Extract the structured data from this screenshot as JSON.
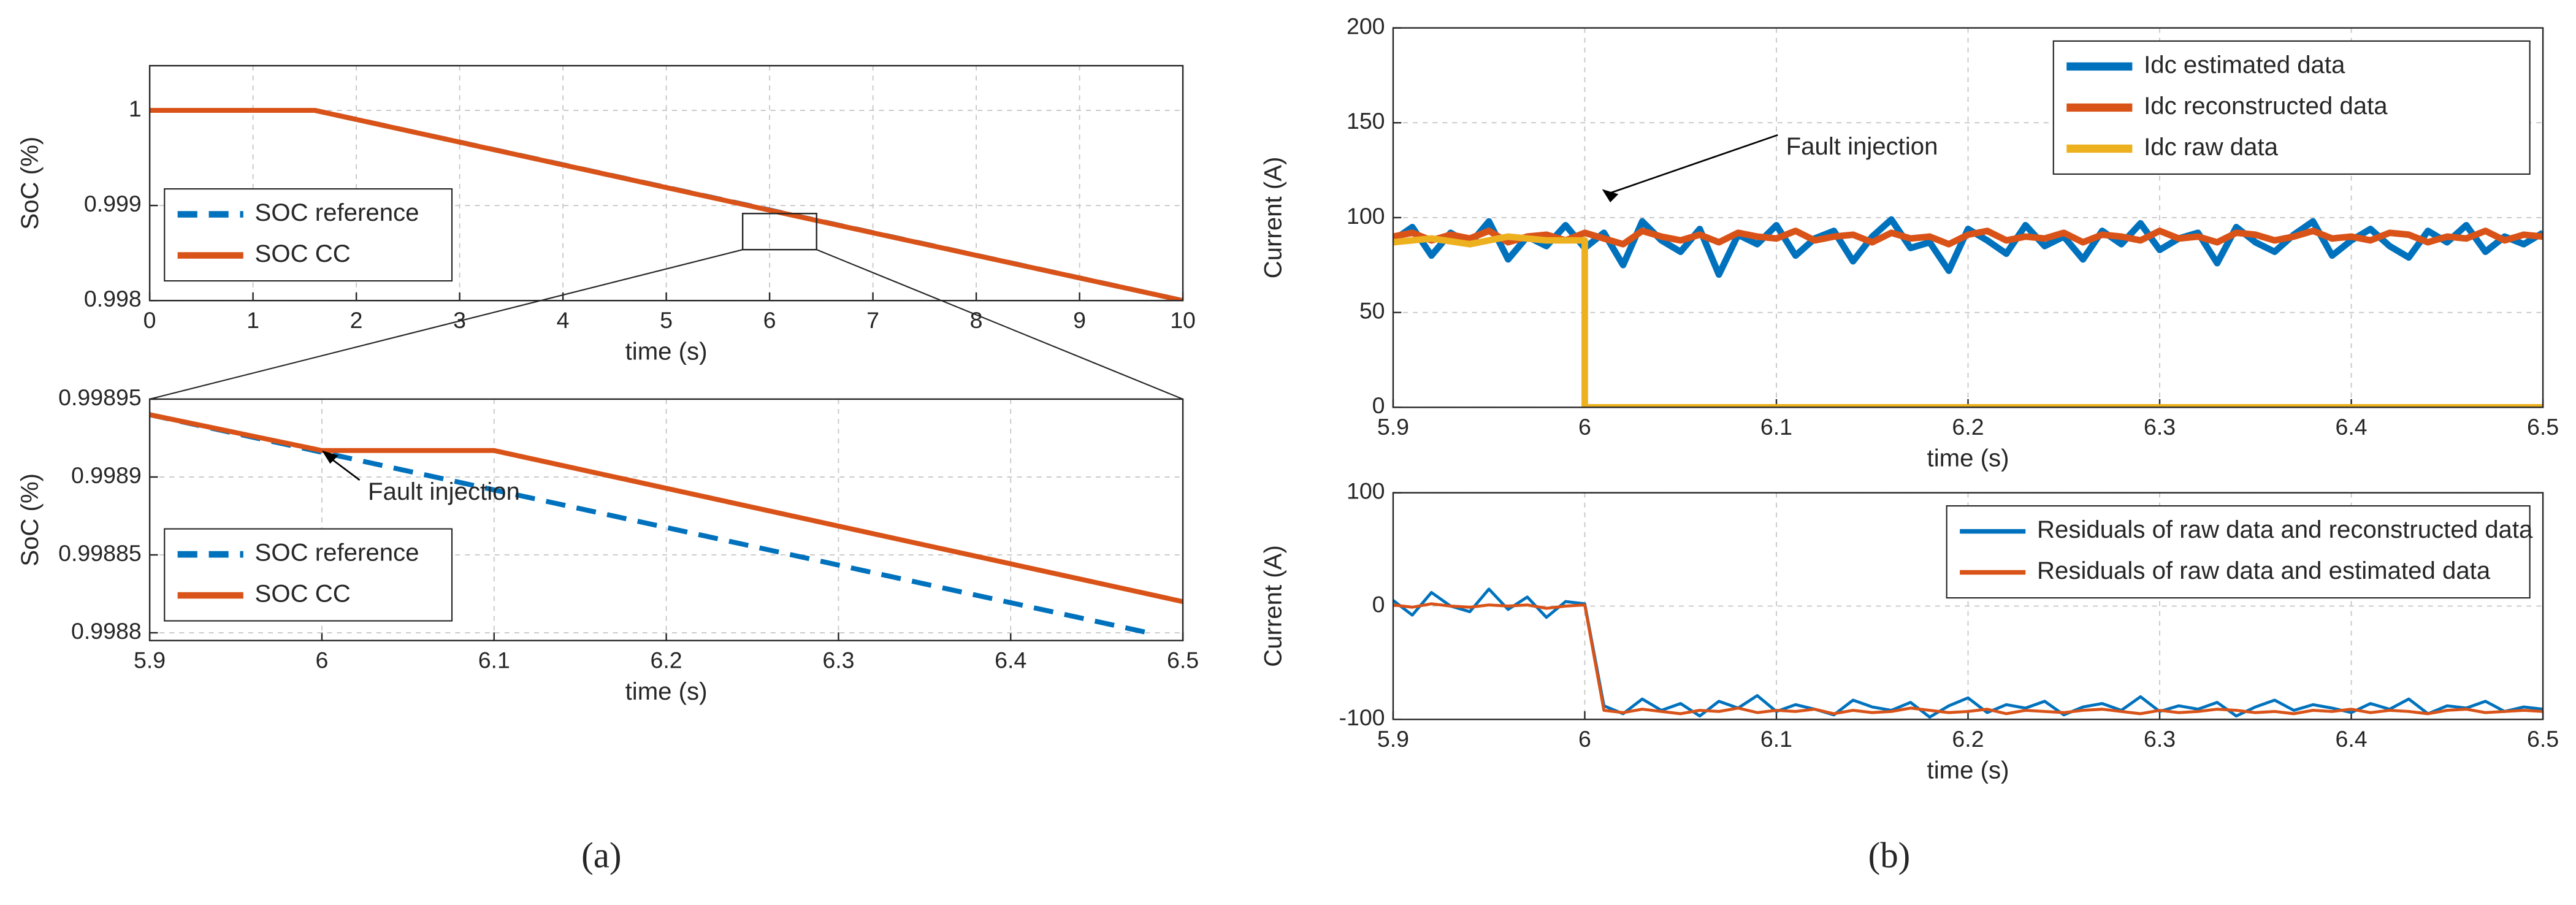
{
  "chart_data": [
    {
      "type": "line",
      "ylabel": "SoC (%)",
      "xlabel": "time (s)",
      "xlim": [
        0,
        10
      ],
      "xticks": [
        0,
        1,
        2,
        3,
        4,
        5,
        6,
        7,
        8,
        9,
        10
      ],
      "ylim": [
        0.998,
        1.00047
      ],
      "yticks": [
        0.998,
        0.999,
        1
      ],
      "grid": true,
      "legend": "lower left",
      "series": [
        {
          "name": "SOC reference",
          "color": "#0072bd",
          "style": "dashed",
          "x": [
            0,
            1.6,
            10
          ],
          "values": [
            1,
            1,
            0.998
          ]
        },
        {
          "name": "SOC CC",
          "color": "#d95319",
          "style": "solid",
          "x": [
            0,
            1.6,
            6,
            10
          ],
          "values": [
            1,
            1,
            0.99895,
            0.998
          ]
        }
      ]
    },
    {
      "type": "line",
      "ylabel": "SoC (%)",
      "xlabel": "time (s)",
      "xlim": [
        5.9,
        6.5
      ],
      "xticks": [
        5.9,
        6,
        6.1,
        6.2,
        6.3,
        6.4,
        6.5
      ],
      "ylim": [
        0.998795,
        0.99895
      ],
      "yticks": [
        0.9988,
        0.99885,
        0.9989,
        0.99895
      ],
      "grid": true,
      "legend": "lower left",
      "annotations": [
        {
          "text": "Fault injection",
          "x": 6.0,
          "y": 0.998917
        }
      ],
      "series": [
        {
          "name": "SOC reference",
          "color": "#0072bd",
          "style": "dashed",
          "x": [
            5.9,
            6.48
          ],
          "values": [
            0.99894,
            0.9988
          ]
        },
        {
          "name": "SOC CC",
          "color": "#d95319",
          "style": "solid",
          "x": [
            5.9,
            6.0,
            6.1,
            6.5
          ],
          "values": [
            0.99894,
            0.998917,
            0.998917,
            0.99882
          ]
        }
      ]
    },
    {
      "type": "line",
      "ylabel": "Current (A)",
      "xlabel": "time (s)",
      "xlim": [
        5.9,
        6.5
      ],
      "xticks": [
        5.9,
        6,
        6.1,
        6.2,
        6.3,
        6.4,
        6.5
      ],
      "ylim": [
        0,
        200
      ],
      "yticks": [
        0,
        50,
        100,
        150,
        200
      ],
      "grid": true,
      "legend": "upper right",
      "annotations": [
        {
          "text": "Fault injection",
          "x": 6.009,
          "y": 115
        }
      ],
      "series": [
        {
          "name": "Idc estimated data",
          "color": "#0072bd",
          "style": "solid",
          "x": [
            5.9,
            5.91,
            5.92,
            5.93,
            5.94,
            5.95,
            5.96,
            5.97,
            5.98,
            5.99,
            6.0,
            6.01,
            6.02,
            6.03,
            6.04,
            6.05,
            6.06,
            6.07,
            6.08,
            6.09,
            6.1,
            6.11,
            6.12,
            6.13,
            6.14,
            6.15,
            6.16,
            6.17,
            6.18,
            6.19,
            6.2,
            6.21,
            6.22,
            6.23,
            6.24,
            6.25,
            6.26,
            6.27,
            6.28,
            6.29,
            6.3,
            6.31,
            6.32,
            6.33,
            6.34,
            6.35,
            6.36,
            6.37,
            6.38,
            6.39,
            6.4,
            6.41,
            6.42,
            6.43,
            6.44,
            6.45,
            6.46,
            6.47,
            6.48,
            6.49,
            6.5
          ],
          "values": [
            88,
            95,
            80,
            92,
            86,
            98,
            78,
            90,
            85,
            96,
            84,
            92,
            75,
            98,
            88,
            82,
            94,
            70,
            91,
            86,
            96,
            80,
            89,
            93,
            77,
            90,
            99,
            84,
            87,
            72,
            94,
            88,
            81,
            96,
            85,
            90,
            78,
            93,
            86,
            97,
            83,
            89,
            92,
            76,
            95,
            87,
            82,
            91,
            98,
            80,
            88,
            94,
            85,
            79,
            93,
            87,
            96,
            82,
            90,
            86,
            92
          ]
        },
        {
          "name": "Idc reconstructed data",
          "color": "#d95319",
          "style": "solid",
          "x": [
            5.9,
            5.91,
            5.92,
            5.93,
            5.94,
            5.95,
            5.96,
            5.97,
            5.98,
            5.99,
            6.0,
            6.01,
            6.02,
            6.03,
            6.04,
            6.05,
            6.06,
            6.07,
            6.08,
            6.09,
            6.1,
            6.11,
            6.12,
            6.13,
            6.14,
            6.15,
            6.16,
            6.17,
            6.18,
            6.19,
            6.2,
            6.21,
            6.22,
            6.23,
            6.24,
            6.25,
            6.26,
            6.27,
            6.28,
            6.29,
            6.3,
            6.31,
            6.32,
            6.33,
            6.34,
            6.35,
            6.36,
            6.37,
            6.38,
            6.39,
            6.4,
            6.41,
            6.42,
            6.43,
            6.44,
            6.45,
            6.46,
            6.47,
            6.48,
            6.49,
            6.5
          ],
          "values": [
            90,
            92,
            88,
            91,
            89,
            93,
            87,
            90,
            91,
            88,
            92,
            89,
            86,
            93,
            90,
            88,
            91,
            87,
            92,
            90,
            89,
            93,
            88,
            90,
            91,
            87,
            92,
            89,
            90,
            86,
            91,
            93,
            88,
            90,
            89,
            92,
            87,
            91,
            90,
            88,
            93,
            89,
            90,
            87,
            92,
            91,
            88,
            90,
            93,
            89,
            90,
            88,
            92,
            91,
            87,
            90,
            89,
            93,
            88,
            91,
            90
          ]
        },
        {
          "name": "Idc raw data",
          "color": "#edb120",
          "style": "solid",
          "x": [
            5.9,
            5.92,
            5.94,
            5.96,
            5.98,
            6.0,
            6.0,
            6.5
          ],
          "values": [
            87,
            89,
            86,
            90,
            88,
            88,
            0,
            0
          ]
        }
      ]
    },
    {
      "type": "line",
      "ylabel": "Current (A)",
      "xlabel": "time (s)",
      "xlim": [
        5.9,
        6.5
      ],
      "xticks": [
        5.9,
        6,
        6.1,
        6.2,
        6.3,
        6.4,
        6.5
      ],
      "ylim": [
        -100,
        100
      ],
      "yticks": [
        -100,
        0,
        100
      ],
      "grid": true,
      "legend": "upper right",
      "series": [
        {
          "name": "Residuals of raw data and reconstructed data",
          "color": "#0072bd",
          "style": "solid",
          "x": [
            5.9,
            5.91,
            5.92,
            5.93,
            5.94,
            5.95,
            5.96,
            5.97,
            5.98,
            5.99,
            6.0,
            6.01,
            6.02,
            6.03,
            6.04,
            6.05,
            6.06,
            6.07,
            6.08,
            6.09,
            6.1,
            6.11,
            6.12,
            6.13,
            6.14,
            6.15,
            6.16,
            6.17,
            6.18,
            6.19,
            6.2,
            6.21,
            6.22,
            6.23,
            6.24,
            6.25,
            6.26,
            6.27,
            6.28,
            6.29,
            6.3,
            6.31,
            6.32,
            6.33,
            6.34,
            6.35,
            6.36,
            6.37,
            6.38,
            6.39,
            6.4,
            6.41,
            6.42,
            6.43,
            6.44,
            6.45,
            6.46,
            6.47,
            6.48,
            6.49,
            6.5
          ],
          "values": [
            5,
            -8,
            12,
            0,
            -5,
            15,
            -3,
            8,
            -10,
            4,
            2,
            -88,
            -95,
            -82,
            -92,
            -86,
            -97,
            -84,
            -90,
            -79,
            -93,
            -87,
            -91,
            -96,
            -83,
            -89,
            -92,
            -85,
            -98,
            -88,
            -81,
            -94,
            -87,
            -90,
            -84,
            -96,
            -89,
            -86,
            -92,
            -80,
            -93,
            -88,
            -91,
            -85,
            -97,
            -89,
            -83,
            -92,
            -87,
            -90,
            -94,
            -86,
            -91,
            -82,
            -95,
            -88,
            -90,
            -84,
            -93,
            -89,
            -91
          ]
        },
        {
          "name": "Residuals of raw data and estimated data",
          "color": "#d95319",
          "style": "solid",
          "x": [
            5.9,
            5.91,
            5.92,
            5.93,
            5.94,
            5.95,
            5.96,
            5.97,
            5.98,
            5.99,
            6.0,
            6.01,
            6.02,
            6.03,
            6.04,
            6.05,
            6.06,
            6.07,
            6.08,
            6.09,
            6.1,
            6.11,
            6.12,
            6.13,
            6.14,
            6.15,
            6.16,
            6.17,
            6.18,
            6.19,
            6.2,
            6.21,
            6.22,
            6.23,
            6.24,
            6.25,
            6.26,
            6.27,
            6.28,
            6.29,
            6.3,
            6.31,
            6.32,
            6.33,
            6.34,
            6.35,
            6.36,
            6.37,
            6.38,
            6.39,
            6.4,
            6.41,
            6.42,
            6.43,
            6.44,
            6.45,
            6.46,
            6.47,
            6.48,
            6.49,
            6.5
          ],
          "values": [
            1,
            -1,
            2,
            0,
            -1,
            1,
            0,
            1,
            -2,
            0,
            1,
            -92,
            -94,
            -91,
            -93,
            -95,
            -92,
            -93,
            -90,
            -94,
            -92,
            -93,
            -91,
            -95,
            -92,
            -94,
            -93,
            -90,
            -92,
            -94,
            -93,
            -91,
            -95,
            -92,
            -93,
            -94,
            -92,
            -91,
            -93,
            -95,
            -92,
            -94,
            -93,
            -91,
            -92,
            -94,
            -93,
            -95,
            -92,
            -93,
            -91,
            -94,
            -92,
            -93,
            -95,
            -92,
            -91,
            -94,
            -93,
            -92,
            -93
          ]
        }
      ]
    }
  ],
  "captions": [
    "(a)",
    "(b)"
  ]
}
